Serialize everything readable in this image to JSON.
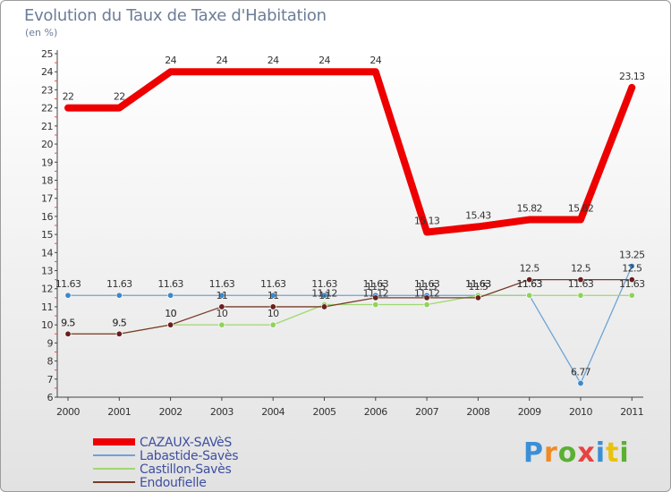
{
  "title": "Evolution du Taux de Taxe d'Habitation",
  "subtitle": "(en %)",
  "logo": {
    "letters": [
      "P",
      "r",
      "o",
      "x",
      "i",
      "t",
      "i"
    ],
    "colors": [
      "#3b8fd6",
      "#f08a24",
      "#5bb031",
      "#e94242",
      "#3b8fd6",
      "#e9c20f",
      "#5bb031"
    ]
  },
  "chart_data": {
    "type": "line",
    "title": "Evolution du Taux de Taxe d'Habitation",
    "ylabel": "(en %)",
    "x": [
      "2000",
      "2001",
      "2002",
      "2003",
      "2004",
      "2005",
      "2006",
      "2007",
      "2008",
      "2009",
      "2010",
      "2011"
    ],
    "ylim": [
      6,
      25
    ],
    "yticks": [
      "6",
      "7",
      "8",
      "9",
      "10",
      "11",
      "12",
      "13",
      "14",
      "15",
      "16",
      "17",
      "18",
      "19",
      "20",
      "21",
      "22",
      "23",
      "24",
      "25"
    ],
    "series": [
      {
        "name": "CAZAUX-SAVèS",
        "color": "#ee0000",
        "width": 8,
        "marker": false,
        "values": [
          22,
          22,
          24,
          24,
          24,
          24,
          24,
          15.13,
          15.43,
          15.82,
          15.82,
          23.13
        ],
        "labels": [
          "22",
          "22",
          "24",
          "24",
          "24",
          "24",
          "24",
          "15.13",
          "15.43",
          "15.82",
          "15.82",
          "23.13"
        ]
      },
      {
        "name": "Labastide-Savès",
        "color": "#6fa3d5",
        "width": 1.3,
        "marker": "#3d88cc",
        "values": [
          11.63,
          11.63,
          11.63,
          11.63,
          11.63,
          11.63,
          11.63,
          11.63,
          11.63,
          11.63,
          6.77,
          13.25
        ],
        "labels": [
          "11.63",
          "11.63",
          "11.63",
          "11.63",
          "11.63",
          "11.63",
          "11.63",
          "11.63",
          "11.63",
          "11.63",
          "6.77",
          "13.25"
        ]
      },
      {
        "name": "Castillon-Savès",
        "color": "#9fd870",
        "width": 1.3,
        "marker": "#8fd35a",
        "values": [
          9.5,
          9.5,
          10,
          10,
          10,
          11.12,
          11.12,
          11.12,
          11.63,
          11.63,
          11.63,
          11.63
        ],
        "labels": [
          "9.5",
          "9.5",
          "10",
          "10",
          "10",
          "11.12",
          "11.12",
          "11.12",
          "11.63",
          "11.63",
          "11.63",
          "11.63"
        ]
      },
      {
        "name": "Endoufielle",
        "color": "#7a3a2a",
        "width": 1.3,
        "marker": "#6a1f1f",
        "values": [
          9.5,
          9.5,
          10,
          11,
          11,
          11,
          11.5,
          11.5,
          11.5,
          12.5,
          12.5,
          12.5
        ],
        "labels": [
          "9.5",
          "9.5",
          "10",
          "11",
          "11",
          "11",
          "11.5",
          "11.5",
          "11.5",
          "12.5",
          "12.5",
          "12.5"
        ]
      }
    ],
    "legend_position": "bottom-left"
  }
}
